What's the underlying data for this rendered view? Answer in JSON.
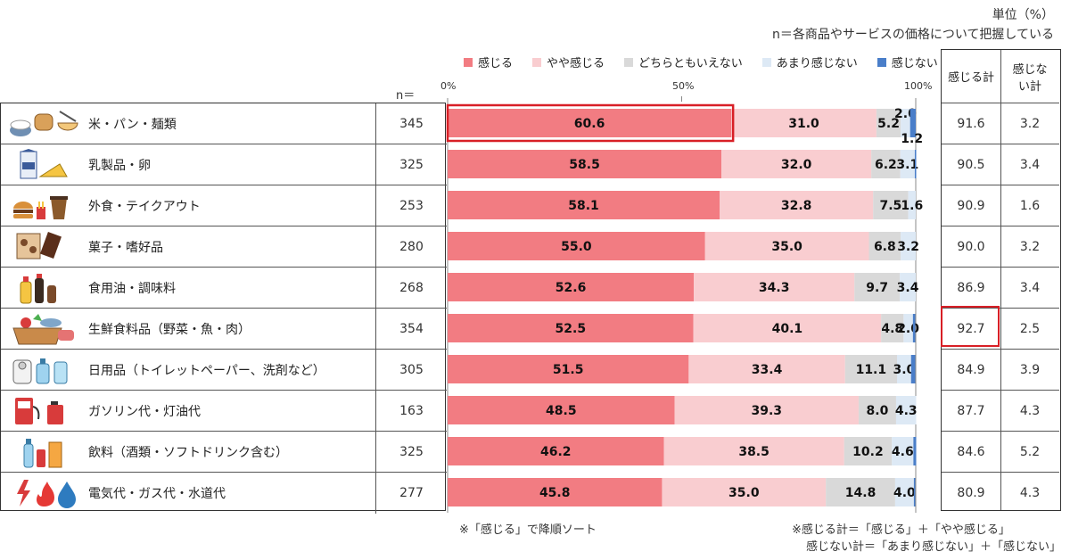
{
  "unit_label": "単位（%）",
  "n_note": "n＝各商品やサービスの価格について把握している",
  "n_header": "n＝",
  "axis_ticks": [
    "0%",
    "50%",
    "100%"
  ],
  "legend": [
    {
      "label": "感じる",
      "color": "#f27c82"
    },
    {
      "label": "やや感じる",
      "color": "#f9cdd0"
    },
    {
      "label": "どちらともいえない",
      "color": "#d9d9d9"
    },
    {
      "label": "あまり感じない",
      "color": "#dde9f5"
    },
    {
      "label": "感じない",
      "color": "#4a7ec9"
    }
  ],
  "summary_headers": [
    "感じる計",
    "感じない計"
  ],
  "rows": [
    {
      "label": "米・パン・麺類",
      "icon": "rice-bread-noodle-icon",
      "n": "345",
      "agree_total": "91.6",
      "disagree_total": "3.2"
    },
    {
      "label": "乳製品・卵",
      "icon": "milk-cheese-icon",
      "n": "325",
      "agree_total": "90.5",
      "disagree_total": "3.4"
    },
    {
      "label": "外食・テイクアウト",
      "icon": "burger-coffee-icon",
      "n": "253",
      "agree_total": "90.9",
      "disagree_total": "1.6"
    },
    {
      "label": "菓子・嗜好品",
      "icon": "snacks-chocolate-icon",
      "n": "280",
      "agree_total": "90.0",
      "disagree_total": "3.2"
    },
    {
      "label": "食用油・調味料",
      "icon": "oil-soy-sauce-icon",
      "n": "268",
      "agree_total": "86.9",
      "disagree_total": "3.4"
    },
    {
      "label": "生鮮食料品（野菜・魚・肉）",
      "icon": "fresh-food-basket-icon",
      "n": "354",
      "agree_total": "92.7",
      "disagree_total": "2.5"
    },
    {
      "label": "日用品（トイレットペーパー、洗剤など）",
      "icon": "toilet-paper-detergent-icon",
      "n": "305",
      "agree_total": "84.9",
      "disagree_total": "3.9"
    },
    {
      "label": "ガソリン代・灯油代",
      "icon": "fuel-pump-icon",
      "n": "163",
      "agree_total": "87.7",
      "disagree_total": "4.3"
    },
    {
      "label": "飲料（酒類・ソフトドリンク含む）",
      "icon": "beverage-bottles-icon",
      "n": "325",
      "agree_total": "84.6",
      "disagree_total": "5.2"
    },
    {
      "label": "電気代・ガス代・水道代",
      "icon": "utilities-icon",
      "n": "277",
      "agree_total": "80.9",
      "disagree_total": "4.3"
    }
  ],
  "footnote_sort": "※「感じる」で降順ソート",
  "footnote_def1": "※感じる計＝「感じる」＋「やや感じる」",
  "footnote_def2": "感じない計＝「あまり感じない」＋「感じない」",
  "chart_data": {
    "type": "bar",
    "orientation": "horizontal",
    "stacked": true,
    "categories": [
      "米・パン・麺類",
      "乳製品・卵",
      "外食・テイクアウト",
      "菓子・嗜好品",
      "食用油・調味料",
      "生鮮食料品（野菜・魚・肉）",
      "日用品（トイレットペーパー、洗剤など）",
      "ガソリン代・灯油代",
      "飲料（酒類・ソフトドリンク含む）",
      "電気代・ガス代・水道代"
    ],
    "series": [
      {
        "name": "感じる",
        "values": [
          60.6,
          58.5,
          58.1,
          55.0,
          52.6,
          52.5,
          51.5,
          48.5,
          46.2,
          45.8
        ]
      },
      {
        "name": "やや感じる",
        "values": [
          31.0,
          32.0,
          32.8,
          35.0,
          34.3,
          40.1,
          33.4,
          39.3,
          38.5,
          35.0
        ]
      },
      {
        "name": "どちらともいえない",
        "values": [
          5.2,
          6.2,
          7.5,
          6.8,
          9.7,
          4.8,
          11.1,
          8.0,
          10.2,
          14.8
        ]
      },
      {
        "name": "あまり感じない",
        "values": [
          2.0,
          3.1,
          1.6,
          3.2,
          3.4,
          2.0,
          3.0,
          4.3,
          4.6,
          4.0
        ]
      },
      {
        "name": "感じない",
        "values": [
          1.2,
          0.3,
          0.0,
          0.0,
          0.0,
          0.5,
          0.9,
          0.0,
          0.6,
          0.3
        ]
      }
    ],
    "labels": [
      [
        "60.6",
        "31.0",
        "5.2",
        "2.0",
        "1.2"
      ],
      [
        "58.5",
        "32.0",
        "6.2",
        "3.1",
        ""
      ],
      [
        "58.1",
        "32.8",
        "7.5",
        "1.6",
        ""
      ],
      [
        "55.0",
        "35.0",
        "6.8",
        "3.2",
        ""
      ],
      [
        "52.6",
        "34.3",
        "9.7",
        "3.4",
        ""
      ],
      [
        "52.5",
        "40.1",
        "4.8",
        "2.0",
        ""
      ],
      [
        "51.5",
        "33.4",
        "11.1",
        "3.0",
        ""
      ],
      [
        "48.5",
        "39.3",
        "8.0",
        "4.3",
        ""
      ],
      [
        "46.2",
        "38.5",
        "10.2",
        "4.6",
        ""
      ],
      [
        "45.8",
        "35.0",
        "14.8",
        "4.0",
        ""
      ]
    ],
    "xlim": [
      0,
      100
    ],
    "legend_position": "top",
    "highlight": {
      "category_index": 0,
      "series_index": 0
    }
  }
}
